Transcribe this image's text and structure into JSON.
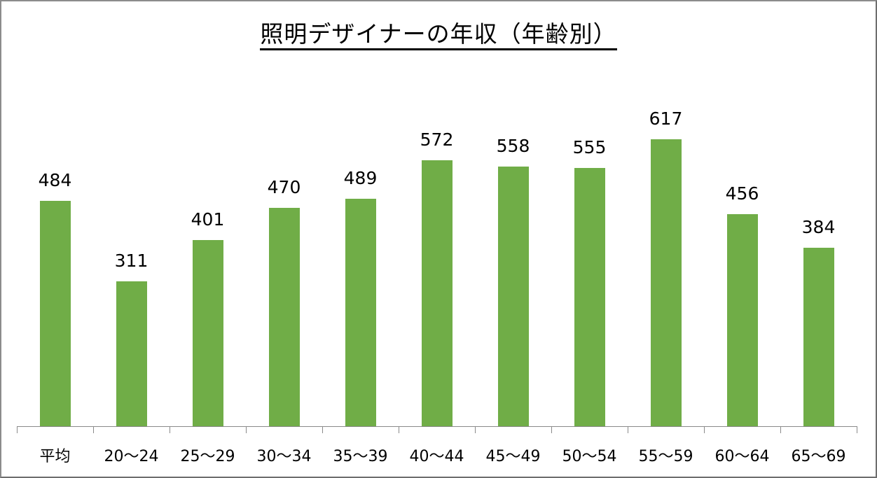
{
  "chart_data": {
    "type": "bar",
    "title": "照明デザイナーの年収（年齢別）",
    "categories": [
      "平均",
      "20〜24",
      "25〜29",
      "30〜34",
      "35〜39",
      "40〜44",
      "45〜49",
      "50〜54",
      "55〜59",
      "60〜64",
      "65〜69"
    ],
    "values": [
      484,
      311,
      401,
      470,
      489,
      572,
      558,
      555,
      617,
      456,
      384
    ],
    "xlabel": "",
    "ylabel": "",
    "ylim": [
      0,
      617
    ],
    "grid": false,
    "legend": "none",
    "bar_color": "#70ad47",
    "data_labels": true
  }
}
